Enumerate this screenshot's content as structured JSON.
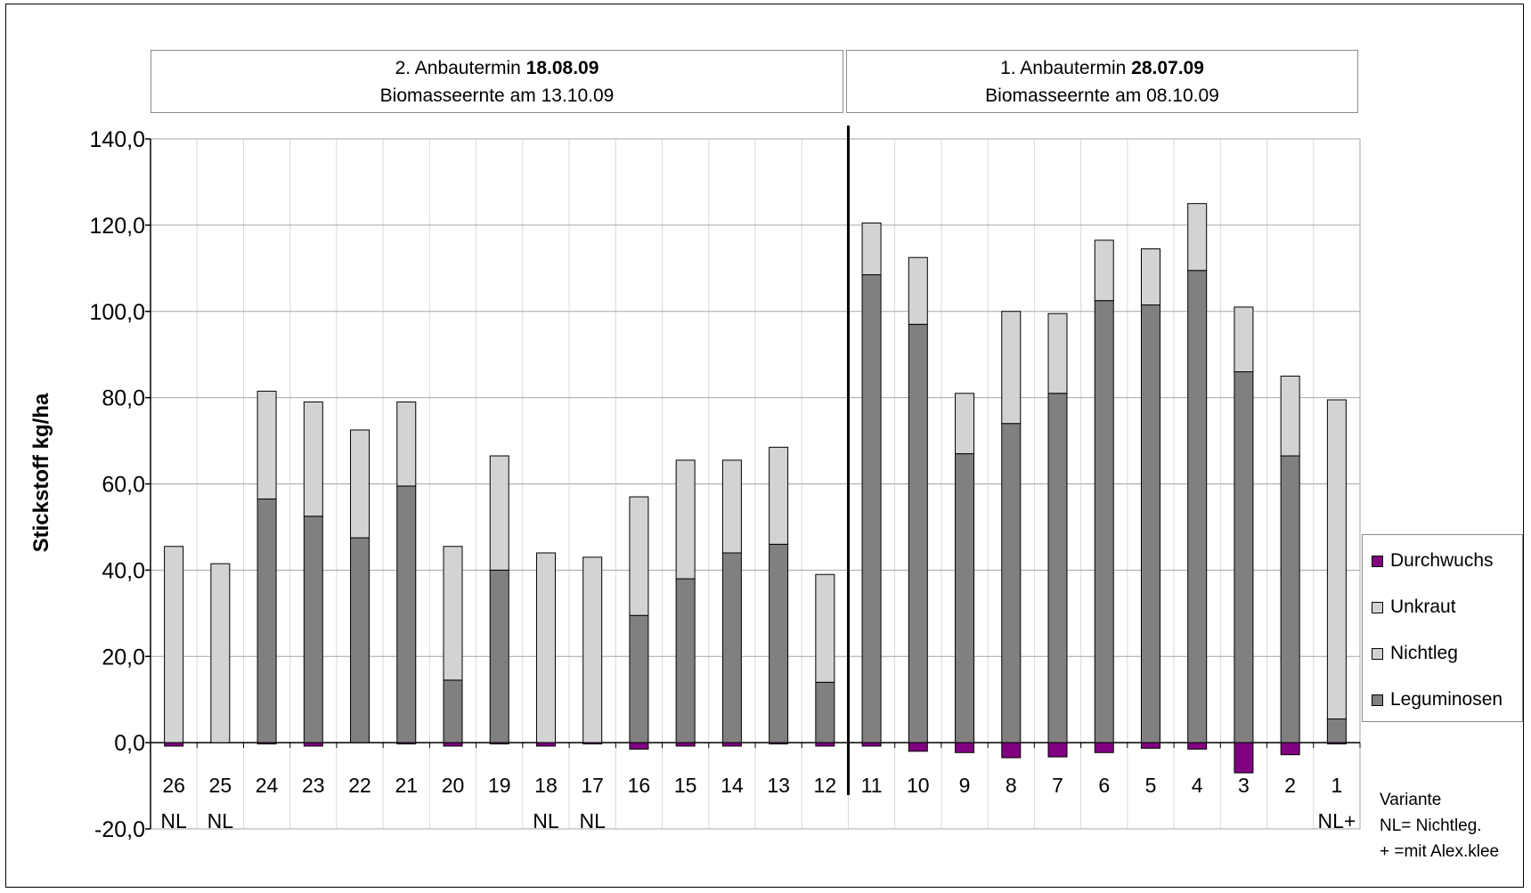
{
  "header": {
    "left": {
      "line1_prefix": "2. Anbautermin ",
      "line1_bold": "18.08.09",
      "line2": "Biomasseernte am 13.10.09"
    },
    "right": {
      "line1_prefix": "1. Anbautermin ",
      "line1_bold": "28.07.09",
      "line2": "Biomasseernte am 08.10.09"
    }
  },
  "note": {
    "line1": "Variante",
    "line2": "NL= Nichtleg.",
    "line3": "+ =mit Alex.klee"
  },
  "colors": {
    "durchwuchs": "#800080",
    "unkraut": "#d3d3d3",
    "nichtleg": "#d3d3d3",
    "leguminosen": "#808080",
    "grid": "#a6a6a6"
  },
  "chart_data": {
    "type": "bar",
    "stacked": true,
    "ylabel": "Stickstoff kg/ha",
    "ylim": [
      -20,
      140
    ],
    "yticks": [
      "-20,0",
      "0,0",
      "20,0",
      "40,0",
      "60,0",
      "80,0",
      "100,0",
      "120,0",
      "140,0"
    ],
    "categories": [
      "26",
      "25",
      "24",
      "23",
      "22",
      "21",
      "20",
      "19",
      "18",
      "17",
      "16",
      "15",
      "14",
      "13",
      "12",
      "11",
      "10",
      "9",
      "8",
      "7",
      "6",
      "5",
      "4",
      "3",
      "2",
      "1"
    ],
    "sublabels": [
      "NL",
      "NL",
      "",
      "",
      "",
      "",
      "",
      "",
      "NL",
      "NL",
      "",
      "",
      "",
      "",
      "",
      "",
      "",
      "",
      "",
      "",
      "",
      "",
      "",
      "",
      "",
      "NL+"
    ],
    "legend": [
      "Durchwuchs",
      "Unkraut",
      "Nichtleg",
      "Leguminosen"
    ],
    "series": [
      {
        "name": "Leguminosen",
        "values": [
          0,
          0,
          56.5,
          52.5,
          47.5,
          59.5,
          14.5,
          40,
          0,
          0,
          29.5,
          38,
          44,
          46,
          14,
          108.5,
          97,
          67,
          74,
          81,
          102.5,
          101.5,
          109.5,
          86,
          66.5,
          5.5
        ]
      },
      {
        "name": "Nichtleg",
        "values": [
          45.5,
          41.5,
          0,
          0,
          0,
          0,
          0,
          0,
          44,
          43,
          0,
          0,
          0,
          0,
          0,
          0,
          0,
          0,
          0,
          0,
          0,
          0,
          0,
          0,
          0,
          74
        ]
      },
      {
        "name": "Unkraut",
        "values": [
          0,
          0,
          25,
          26.5,
          25,
          19.5,
          31,
          26.5,
          0,
          0,
          27.5,
          27.5,
          21.5,
          22.5,
          25,
          12,
          15.5,
          14,
          26,
          18.5,
          14,
          13,
          15.5,
          15,
          18.5,
          0
        ]
      },
      {
        "name": "Durchwuchs",
        "values": [
          -0.8,
          0,
          -0.3,
          -0.8,
          0,
          -0.3,
          -0.8,
          -0.3,
          -0.8,
          -0.3,
          -1.5,
          -0.8,
          -0.8,
          -0.3,
          -0.8,
          -0.8,
          -2,
          -2.3,
          -3.5,
          -3.3,
          -2.3,
          -1.3,
          -1.5,
          -7,
          -2.8,
          -0.3
        ]
      }
    ],
    "groups": [
      {
        "label": "2. Anbautermin 18.08.09",
        "categories": [
          "26",
          "25",
          "24",
          "23",
          "22",
          "21",
          "20",
          "19",
          "18",
          "17",
          "16",
          "15",
          "14",
          "13",
          "12"
        ]
      },
      {
        "label": "1. Anbautermin 28.07.09",
        "categories": [
          "11",
          "10",
          "9",
          "8",
          "7",
          "6",
          "5",
          "4",
          "3",
          "2",
          "1"
        ]
      }
    ],
    "grid": true,
    "legend_position": "right"
  }
}
